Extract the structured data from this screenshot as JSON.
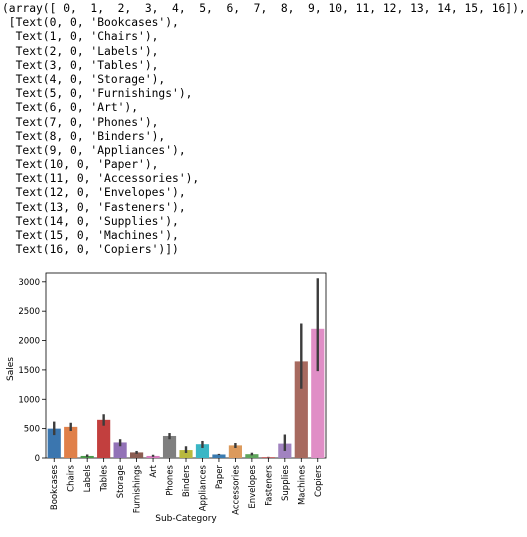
{
  "output": {
    "lines": [
      "(array([ 0,  1,  2,  3,  4,  5,  6,  7,  8,  9, 10, 11, 12, 13, 14, 15, 16]),",
      " [Text(0, 0, 'Bookcases'),",
      "  Text(1, 0, 'Chairs'),",
      "  Text(2, 0, 'Labels'),",
      "  Text(3, 0, 'Tables'),",
      "  Text(4, 0, 'Storage'),",
      "  Text(5, 0, 'Furnishings'),",
      "  Text(6, 0, 'Art'),",
      "  Text(7, 0, 'Phones'),",
      "  Text(8, 0, 'Binders'),",
      "  Text(9, 0, 'Appliances'),",
      "  Text(10, 0, 'Paper'),",
      "  Text(11, 0, 'Accessories'),",
      "  Text(12, 0, 'Envelopes'),",
      "  Text(13, 0, 'Fasteners'),",
      "  Text(14, 0, 'Supplies'),",
      "  Text(15, 0, 'Machines'),",
      "  Text(16, 0, 'Copiers')])"
    ]
  },
  "chart_data": {
    "type": "bar",
    "title": "",
    "xlabel": "Sub-Category",
    "ylabel": "Sales",
    "ylim": [
      0,
      3150
    ],
    "yticks": [
      0,
      500,
      1000,
      1500,
      2000,
      2500,
      3000
    ],
    "categories": [
      "Bookcases",
      "Chairs",
      "Labels",
      "Tables",
      "Storage",
      "Furnishings",
      "Art",
      "Phones",
      "Binders",
      "Appliances",
      "Paper",
      "Accessories",
      "Envelopes",
      "Fasteners",
      "Supplies",
      "Machines",
      "Copiers"
    ],
    "values": [
      500,
      530,
      35,
      650,
      265,
      95,
      35,
      375,
      135,
      235,
      60,
      215,
      65,
      15,
      245,
      1645,
      2200
    ],
    "ci_low": [
      390,
      460,
      15,
      550,
      200,
      70,
      20,
      320,
      85,
      170,
      50,
      170,
      45,
      10,
      120,
      1180,
      1480
    ],
    "ci_high": [
      620,
      600,
      60,
      745,
      320,
      120,
      55,
      425,
      200,
      290,
      70,
      255,
      90,
      20,
      400,
      2290,
      3060
    ],
    "colors": [
      "#3b76af",
      "#e0804a",
      "#4a9a4a",
      "#c23f3e",
      "#9272b7",
      "#8b5d52",
      "#d67bbd",
      "#7f7f7f",
      "#b9b93e",
      "#3ab6c5",
      "#3a7bb0",
      "#dc9a5c",
      "#5ea55c",
      "#c65858",
      "#a183c0",
      "#a76a5f",
      "#e08ec6"
    ],
    "grid": false,
    "legend": "none"
  }
}
